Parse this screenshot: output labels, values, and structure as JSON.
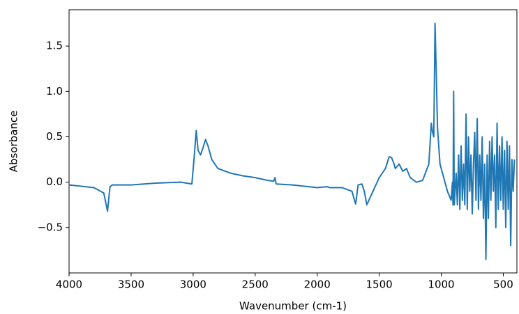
{
  "chart_data": {
    "type": "line",
    "xlabel": "Wavenumber (cm-1)",
    "ylabel": "Absorbance",
    "xlim": [
      4000,
      390
    ],
    "ylim": [
      -1.0,
      1.9
    ],
    "xticks": [
      4000,
      3500,
      3000,
      2500,
      2000,
      1500,
      1000,
      500
    ],
    "yticks": [
      {
        "value": -0.5,
        "label": "−0.5"
      },
      0.0,
      0.5,
      1.0,
      1.5
    ],
    "x": [
      4000,
      3800,
      3720,
      3690,
      3670,
      3650,
      3500,
      3300,
      3100,
      3010,
      2990,
      2975,
      2960,
      2940,
      2920,
      2900,
      2880,
      2850,
      2800,
      2700,
      2600,
      2500,
      2400,
      2350,
      2340,
      2330,
      2200,
      2000,
      1920,
      1900,
      1800,
      1720,
      1690,
      1670,
      1640,
      1620,
      1600,
      1550,
      1500,
      1450,
      1420,
      1400,
      1380,
      1370,
      1340,
      1310,
      1280,
      1250,
      1200,
      1150,
      1100,
      1080,
      1070,
      1060,
      1050,
      1040,
      1030,
      1010,
      980,
      950,
      920,
      910,
      905,
      900,
      895,
      880,
      870,
      860,
      850,
      840,
      830,
      820,
      810,
      800,
      790,
      780,
      770,
      760,
      750,
      740,
      730,
      720,
      710,
      700,
      690,
      680,
      670,
      660,
      650,
      640,
      630,
      620,
      610,
      600,
      590,
      580,
      570,
      560,
      550,
      540,
      530,
      520,
      510,
      500,
      490,
      480,
      470,
      460,
      450,
      440,
      430,
      420,
      410
    ],
    "series": [
      {
        "name": "Absorbance",
        "color": "#1f77b4",
        "values": [
          -0.03,
          -0.06,
          -0.12,
          -0.32,
          -0.05,
          -0.03,
          -0.03,
          -0.01,
          0.0,
          -0.02,
          0.3,
          0.57,
          0.35,
          0.3,
          0.38,
          0.47,
          0.4,
          0.25,
          0.15,
          0.1,
          0.07,
          0.05,
          0.02,
          0.01,
          0.05,
          -0.02,
          -0.03,
          -0.06,
          -0.05,
          -0.06,
          -0.06,
          -0.1,
          -0.24,
          -0.03,
          -0.02,
          -0.1,
          -0.25,
          -0.1,
          0.05,
          0.15,
          0.28,
          0.27,
          0.2,
          0.15,
          0.2,
          0.12,
          0.15,
          0.05,
          0.0,
          0.02,
          0.2,
          0.65,
          0.55,
          0.5,
          1.75,
          1.2,
          0.6,
          0.2,
          0.05,
          -0.1,
          -0.2,
          0.0,
          -0.25,
          1.0,
          -0.25,
          0.1,
          -0.25,
          0.3,
          -0.3,
          0.4,
          -0.2,
          0.2,
          -0.25,
          0.75,
          -0.3,
          0.5,
          -0.1,
          0.3,
          -0.35,
          0.2,
          0.55,
          -0.2,
          0.7,
          -0.3,
          0.3,
          -0.2,
          0.5,
          -0.4,
          0.2,
          -0.85,
          0.3,
          -0.4,
          0.45,
          -0.2,
          0.5,
          -0.1,
          0.3,
          -0.5,
          0.65,
          -0.3,
          0.4,
          -0.2,
          0.5,
          -0.3,
          0.35,
          -0.5,
          0.45,
          -0.3,
          0.4,
          -0.7,
          0.25,
          -0.1,
          0.25
        ]
      }
    ]
  }
}
